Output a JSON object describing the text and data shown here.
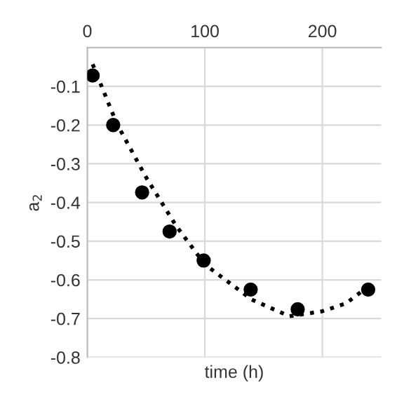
{
  "chart_data": {
    "type": "scatter",
    "xlabel": "time (h)",
    "ylabel": "a$_{2}$",
    "xlim": [
      0,
      250
    ],
    "ylim": [
      -0.8,
      0
    ],
    "xticks": [
      0,
      100,
      200
    ],
    "yticks": [
      -0.8,
      -0.7,
      -0.6,
      -0.5,
      -0.4,
      -0.3,
      -0.2,
      -0.1
    ],
    "grid": true,
    "legend": false,
    "marker": "circle",
    "series": [
      {
        "color": "#000000",
        "x": [
          4.5,
          22,
          46.6,
          70,
          99,
          139,
          179,
          239
        ],
        "values": [
          -0.072,
          -0.2,
          -0.374,
          -0.475,
          -0.55,
          -0.625,
          -0.676,
          -0.625
        ]
      },
      {
        "type": "line",
        "color": "#000000",
        "marker": "none",
        "line_style": "dotted",
        "x": [
          4.5,
          25,
          50,
          75,
          100,
          140,
          172,
          200,
          220,
          239
        ],
        "values": [
          -0.043,
          -0.196,
          -0.335,
          -0.458,
          -0.56,
          -0.651,
          -0.694,
          -0.681,
          -0.661,
          -0.617
        ]
      }
    ]
  }
}
